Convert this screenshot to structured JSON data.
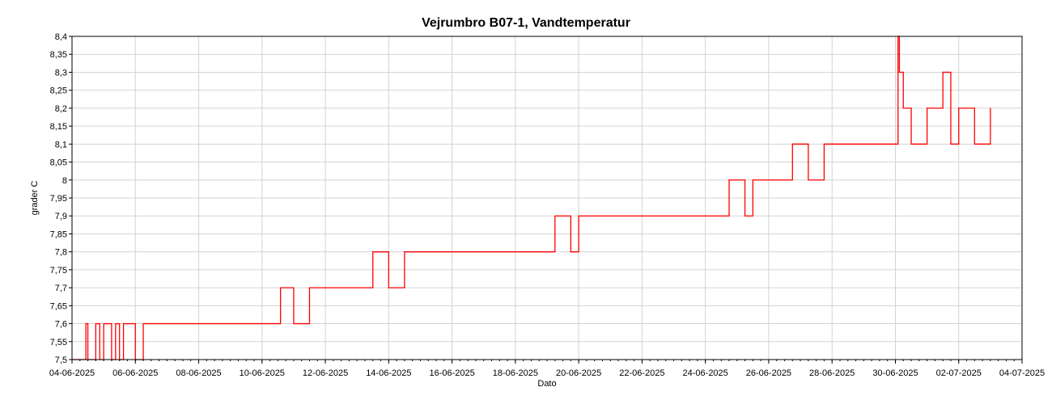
{
  "chart_data": {
    "type": "line",
    "title": "Vejrumbro B07-1, Vandtemperatur",
    "xlabel": "Dato",
    "ylabel": "grader C",
    "xlim": [
      "04-06-2025",
      "04-07-2025"
    ],
    "ylim": [
      7.5,
      8.4
    ],
    "grid": true,
    "legend": "none",
    "yticks": [
      "7,5",
      "7,55",
      "7,6",
      "7,65",
      "7,7",
      "7,75",
      "7,8",
      "7,85",
      "7,9",
      "7,95",
      "8",
      "8,05",
      "8,1",
      "8,15",
      "8,2",
      "8,25",
      "8,3",
      "8,35",
      "8,4"
    ],
    "xticks": [
      "04-06-2025",
      "06-06-2025",
      "08-06-2025",
      "10-06-2025",
      "12-06-2025",
      "14-06-2025",
      "16-06-2025",
      "18-06-2025",
      "20-06-2025",
      "22-06-2025",
      "24-06-2025",
      "26-06-2025",
      "28-06-2025",
      "30-06-2025",
      "02-07-2025",
      "04-07-2025"
    ],
    "series": [
      {
        "color": "#ff0000",
        "x": [
          "04-06-2025 00:00",
          "04-06-2025 10:00",
          "04-06-2025 10:30",
          "04-06-2025 12:00",
          "04-06-2025 18:00",
          "04-06-2025 21:00",
          "05-06-2025 00:00",
          "05-06-2025 06:00",
          "05-06-2025 09:00",
          "05-06-2025 12:00",
          "05-06-2025 15:00",
          "05-06-2025 18:00",
          "06-06-2025 00:00",
          "06-06-2025 06:00",
          "10-06-2025 12:00",
          "10-06-2025 14:00",
          "11-06-2025 00:00",
          "11-06-2025 12:00",
          "12-06-2025 00:00",
          "13-06-2025 12:00",
          "14-06-2025 00:00",
          "14-06-2025 12:00",
          "15-06-2025 00:00",
          "19-06-2025 06:00",
          "19-06-2025 18:00",
          "20-06-2025 00:00",
          "20-06-2025 12:00",
          "24-06-2025 18:00",
          "25-06-2025 06:00",
          "25-06-2025 12:00",
          "26-06-2025 18:00",
          "27-06-2025 06:00",
          "27-06-2025 18:00",
          "30-06-2025 00:00",
          "30-06-2025 02:00",
          "30-06-2025 03:00",
          "30-06-2025 06:00",
          "30-06-2025 12:00",
          "01-07-2025 00:00",
          "01-07-2025 12:00",
          "01-07-2025 18:00",
          "02-07-2025 00:00",
          "02-07-2025 12:00",
          "03-07-2025 00:00"
        ],
        "y": [
          7.5,
          7.5,
          7.6,
          7.5,
          7.6,
          7.5,
          7.6,
          7.5,
          7.6,
          7.5,
          7.6,
          7.6,
          7.5,
          7.6,
          7.6,
          7.7,
          7.6,
          7.7,
          7.7,
          7.8,
          7.7,
          7.8,
          7.8,
          7.9,
          7.8,
          7.9,
          7.9,
          8.0,
          7.9,
          8.0,
          8.1,
          8.0,
          8.1,
          8.1,
          8.4,
          8.3,
          8.2,
          8.1,
          8.2,
          8.3,
          8.1,
          8.2,
          8.1,
          8.2
        ]
      }
    ]
  }
}
